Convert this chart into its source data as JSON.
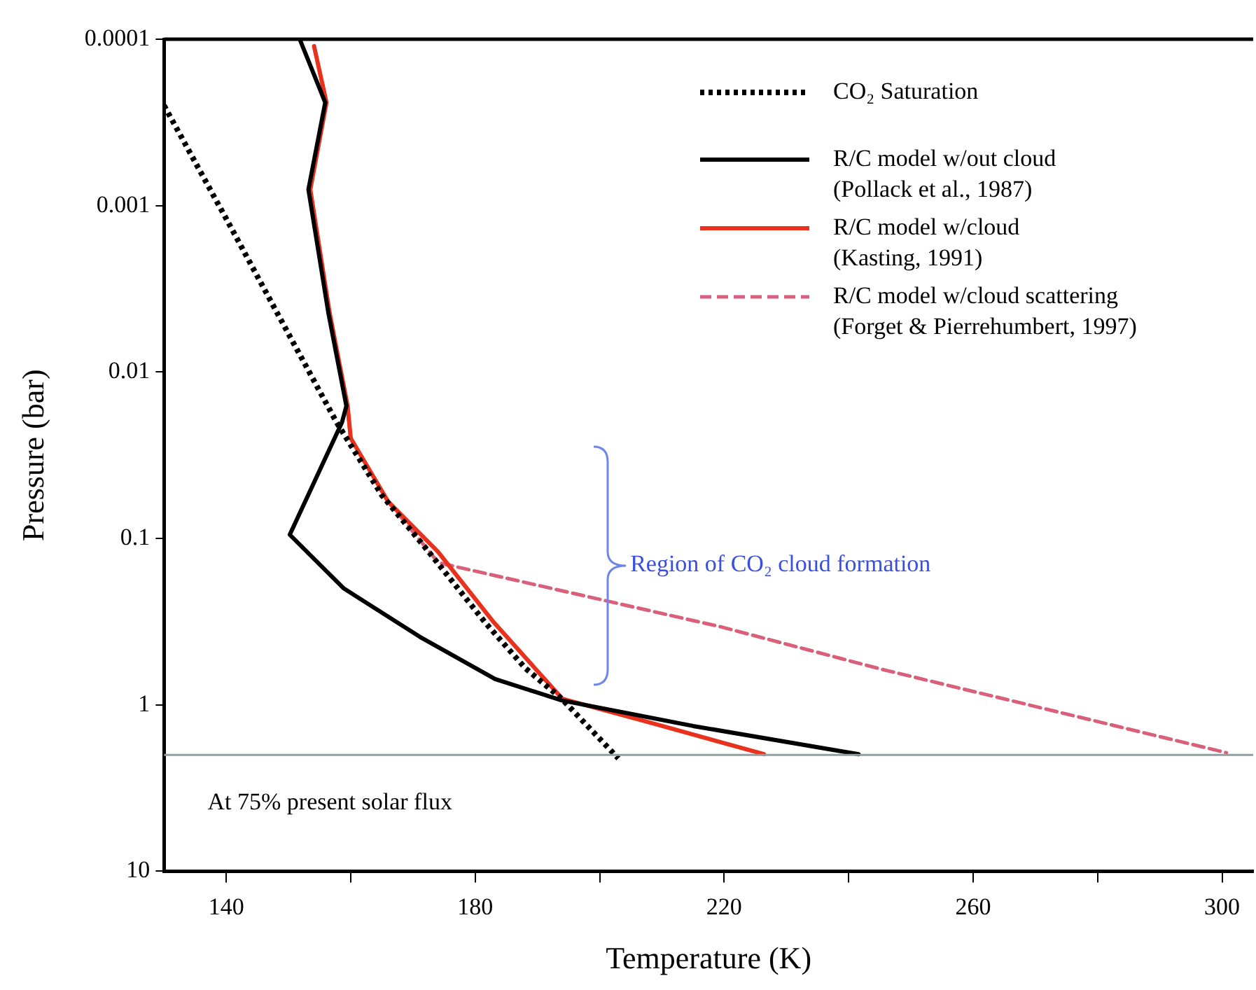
{
  "chart_data": {
    "type": "line",
    "xlabel": "Temperature (K)",
    "ylabel": "Pressure (bar)",
    "xlim": [
      130,
      305
    ],
    "xticks": [
      140,
      {
        "value": 160,
        "label": null
      },
      180,
      {
        "value": 200,
        "label": null
      },
      220,
      {
        "value": 240,
        "label": null
      },
      260,
      {
        "value": 280,
        "label": null
      },
      300
    ],
    "ylim": [
      10,
      0.0001
    ],
    "yticks": [
      0.0001,
      0.001,
      0.01,
      0.1,
      1,
      10
    ],
    "log": "y",
    "grid": false,
    "legend": "top right",
    "marker": "none",
    "series": [
      {
        "name": "CO₂ Saturation",
        "color": "#000000",
        "line_style": "dotted",
        "x": [
          130,
          140,
          150,
          157.7,
          165,
          172.5,
          181.6,
          188,
          193.9,
          203
        ],
        "values": [
          0.00025,
          0.0012,
          0.0059,
          0.02,
          0.055,
          0.12,
          0.32,
          0.6,
          0.92,
          2.1
        ]
      },
      {
        "name": "R/C model w/out cloud (Pollack et al., 1987)",
        "color": "#000000",
        "line_style": "solid",
        "x": [
          151.8,
          155.9,
          153.2,
          156.4,
          159.3,
          158.6,
          150.2,
          158.9,
          171.1,
          183.2,
          193.9,
          215,
          241.6
        ],
        "values": [
          0.0001,
          0.00024,
          0.0008,
          0.0044,
          0.016,
          0.02,
          0.095,
          0.2,
          0.39,
          0.7,
          0.94,
          1.34,
          1.98
        ]
      },
      {
        "name": "R/C model w/cloud (Kasting, 1991)",
        "color": "#e8321e",
        "line_style": "solid",
        "x": [
          154.1,
          156.1,
          153.5,
          156.6,
          159.5,
          160,
          166,
          174,
          183,
          194,
          207.5,
          226.4
        ],
        "values": [
          0.00011,
          0.00024,
          0.0008,
          0.0044,
          0.016,
          0.025,
          0.06,
          0.12,
          0.32,
          0.92,
          1.26,
          1.98
        ]
      },
      {
        "name": "R/C model w/cloud scattering (Forget & Pierrehumbert, 1997)",
        "color": "#d9607a",
        "line_style": "dashed",
        "x": [
          154.1,
          156.1,
          153.4,
          156.5,
          159.4,
          160,
          166,
          174.1,
          219.5,
          245.2,
          300.7
        ],
        "values": [
          0.00011,
          0.00024,
          0.0008,
          0.0044,
          0.016,
          0.025,
          0.06,
          0.14,
          0.34,
          0.61,
          1.94
        ]
      }
    ],
    "ref_lines": [
      {
        "axis": "y",
        "value": 2,
        "color": "#8fa0a0"
      }
    ],
    "annotations": [
      "Region of CO₂ cloud formation",
      "At 75% present solar flux"
    ]
  }
}
